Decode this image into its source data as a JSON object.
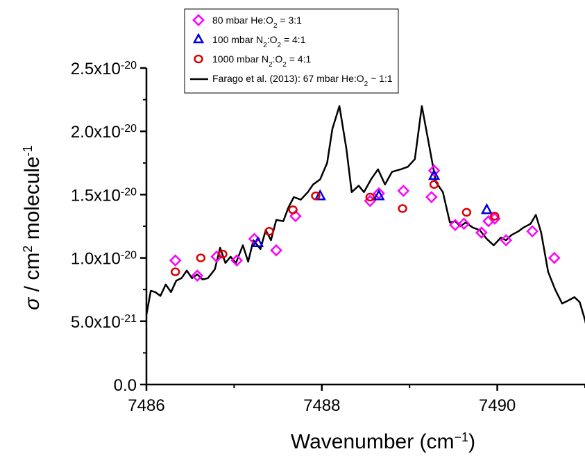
{
  "chart_data": {
    "type": "scatter",
    "xlabel": {
      "main": "Wavenumber (cm",
      "sup": "−1",
      "tail": ")"
    },
    "ylabel": {
      "sigma": "σ",
      "mid": " / cm",
      "sup1": "2",
      "mid2": " molecule",
      "sup2": "-1"
    },
    "xlim": [
      7486,
      7491
    ],
    "ylim": [
      0,
      2.5e-20
    ],
    "x_ticks": [
      7486,
      7488,
      7490
    ],
    "x_tick_labels": [
      "7486",
      "7488",
      "7490"
    ],
    "y_ticks": [
      0,
      5e-21,
      1e-20,
      1.5e-20,
      2e-20,
      2.5e-20
    ],
    "y_tick_labels": [
      {
        "mant": "0.0",
        "exp": ""
      },
      {
        "mant": "5.0x10",
        "exp": "-21"
      },
      {
        "mant": "1.0x10",
        "exp": "-20"
      },
      {
        "mant": "1.5x10",
        "exp": "-20"
      },
      {
        "mant": "2.0x10",
        "exp": "-20"
      },
      {
        "mant": "2.5x10",
        "exp": "-20"
      }
    ],
    "legend_position": "top",
    "series": [
      {
        "marker": "diamond",
        "color": "#ff00ff",
        "legend": {
          "pre": "80 mbar He:O",
          "sub": "2",
          "post": " = 3:1"
        },
        "points": [
          [
            7486.33,
            9.8e-21
          ],
          [
            7486.58,
            8.6e-21
          ],
          [
            7486.8,
            1.01e-20
          ],
          [
            7487.03,
            9.8e-21
          ],
          [
            7487.23,
            1.15e-20
          ],
          [
            7487.48,
            1.06e-20
          ],
          [
            7487.7,
            1.33e-20
          ],
          [
            7488.55,
            1.45e-20
          ],
          [
            7488.65,
            1.51e-20
          ],
          [
            7488.93,
            1.53e-20
          ],
          [
            7489.25,
            1.48e-20
          ],
          [
            7489.28,
            1.69e-20
          ],
          [
            7489.52,
            1.26e-20
          ],
          [
            7489.62,
            1.27e-20
          ],
          [
            7489.82,
            1.2e-20
          ],
          [
            7489.9,
            1.29e-20
          ],
          [
            7489.97,
            1.31e-20
          ],
          [
            7490.1,
            1.14e-20
          ],
          [
            7490.4,
            1.21e-20
          ],
          [
            7490.65,
            1e-20
          ]
        ]
      },
      {
        "marker": "triangle",
        "color": "#0000dd",
        "legend": {
          "pre": "100 mbar N",
          "sub": "2",
          "mid": ":O",
          "sub2": "2",
          "post": " = 4:1"
        },
        "points": [
          [
            7487.27,
            1.12e-20
          ],
          [
            7487.98,
            1.49e-20
          ],
          [
            7488.65,
            1.49e-20
          ],
          [
            7489.28,
            1.65e-20
          ],
          [
            7489.88,
            1.38e-20
          ]
        ]
      },
      {
        "marker": "circle",
        "color": "#dd0000",
        "legend": {
          "pre": "1000 mbar N",
          "sub": "2",
          "mid": ":O",
          "sub2": "2",
          "post": " = 4:1"
        },
        "points": [
          [
            7486.33,
            8.9e-21
          ],
          [
            7486.62,
            1e-20
          ],
          [
            7486.87,
            1.03e-20
          ],
          [
            7487.4,
            1.21e-20
          ],
          [
            7487.67,
            1.38e-20
          ],
          [
            7487.93,
            1.49e-20
          ],
          [
            7488.55,
            1.48e-20
          ],
          [
            7488.92,
            1.39e-20
          ],
          [
            7489.28,
            1.58e-20
          ],
          [
            7489.65,
            1.36e-20
          ],
          [
            7489.97,
            1.33e-20
          ]
        ]
      },
      {
        "marker": "line",
        "color": "#000000",
        "legend": {
          "pre": "Farago et al. (2013): 67 mbar He:O",
          "sub": "2",
          "post": " ~ 1:1"
        },
        "points": [
          [
            7486.0,
            5.5e-21
          ],
          [
            7486.05,
            7.4e-21
          ],
          [
            7486.1,
            7.3e-21
          ],
          [
            7486.16,
            7e-21
          ],
          [
            7486.22,
            7.9e-21
          ],
          [
            7486.28,
            7.3e-21
          ],
          [
            7486.34,
            8.2e-21
          ],
          [
            7486.4,
            8.4e-21
          ],
          [
            7486.46,
            9e-21
          ],
          [
            7486.52,
            8.4e-21
          ],
          [
            7486.58,
            8.7e-21
          ],
          [
            7486.64,
            8.3e-21
          ],
          [
            7486.7,
            8.4e-21
          ],
          [
            7486.78,
            9.1e-21
          ],
          [
            7486.84,
            1.08e-20
          ],
          [
            7486.9,
            9.6e-21
          ],
          [
            7486.96,
            1.01e-20
          ],
          [
            7487.02,
            9.6e-21
          ],
          [
            7487.1,
            1.1e-20
          ],
          [
            7487.16,
            9.7e-21
          ],
          [
            7487.22,
            1.14e-20
          ],
          [
            7487.3,
            1.07e-20
          ],
          [
            7487.36,
            1.22e-20
          ],
          [
            7487.42,
            1.14e-20
          ],
          [
            7487.48,
            1.3e-20
          ],
          [
            7487.56,
            1.29e-20
          ],
          [
            7487.62,
            1.4e-20
          ],
          [
            7487.68,
            1.48e-20
          ],
          [
            7487.76,
            1.46e-20
          ],
          [
            7487.84,
            1.52e-20
          ],
          [
            7487.9,
            1.58e-20
          ],
          [
            7487.98,
            1.62e-20
          ],
          [
            7488.06,
            1.75e-20
          ],
          [
            7488.12,
            2.02e-20
          ],
          [
            7488.2,
            2.2e-20
          ],
          [
            7488.28,
            1.86e-20
          ],
          [
            7488.34,
            1.52e-20
          ],
          [
            7488.42,
            1.57e-20
          ],
          [
            7488.48,
            1.52e-20
          ],
          [
            7488.56,
            1.62e-20
          ],
          [
            7488.64,
            1.7e-20
          ],
          [
            7488.72,
            1.58e-20
          ],
          [
            7488.8,
            1.68e-20
          ],
          [
            7488.9,
            1.7e-20
          ],
          [
            7488.98,
            1.72e-20
          ],
          [
            7489.06,
            1.78e-20
          ],
          [
            7489.14,
            2.2e-20
          ],
          [
            7489.22,
            1.9e-20
          ],
          [
            7489.3,
            1.6e-20
          ],
          [
            7489.38,
            1.52e-20
          ],
          [
            7489.46,
            1.28e-20
          ],
          [
            7489.52,
            1.29e-20
          ],
          [
            7489.58,
            1.25e-20
          ],
          [
            7489.64,
            1.28e-20
          ],
          [
            7489.72,
            1.24e-20
          ],
          [
            7489.8,
            1.22e-20
          ],
          [
            7489.88,
            1.15e-20
          ],
          [
            7489.96,
            1.1e-20
          ],
          [
            7490.04,
            1.16e-20
          ],
          [
            7490.1,
            1.14e-20
          ],
          [
            7490.16,
            1.18e-20
          ],
          [
            7490.24,
            1.21e-20
          ],
          [
            7490.3,
            1.24e-20
          ],
          [
            7490.38,
            1.27e-20
          ],
          [
            7490.44,
            1.34e-20
          ],
          [
            7490.5,
            1.2e-20
          ],
          [
            7490.58,
            8.9e-21
          ],
          [
            7490.66,
            7.5e-21
          ],
          [
            7490.74,
            6.4e-21
          ],
          [
            7490.8,
            6.6e-21
          ],
          [
            7490.88,
            6.9e-21
          ],
          [
            7490.94,
            6.5e-21
          ],
          [
            7491.0,
            5.1e-21
          ],
          [
            7491.06,
            3.2e-21
          ]
        ]
      }
    ]
  }
}
